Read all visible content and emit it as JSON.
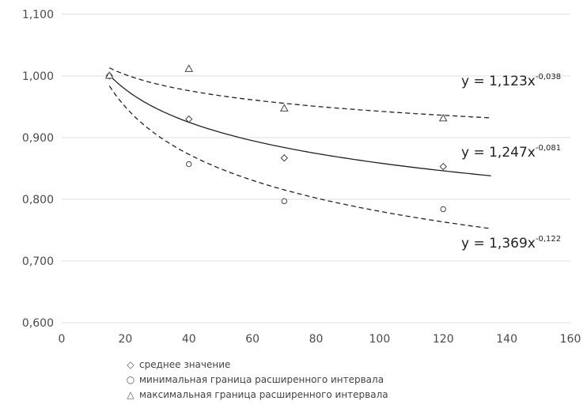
{
  "chart_data": {
    "type": "scatter",
    "xlim": [
      0,
      160
    ],
    "ylim": [
      0.6,
      1.1
    ],
    "x_ticks": [
      "0",
      "20",
      "40",
      "60",
      "80",
      "100",
      "120",
      "140",
      "160"
    ],
    "y_ticks": [
      "0,600",
      "0,700",
      "0,800",
      "0,900",
      "1,000",
      "1,100"
    ],
    "grid": "horizontal",
    "legend_position": "bottom",
    "series": [
      {
        "name": "среднее значение",
        "marker": "diamond",
        "x": [
          15,
          40,
          70,
          120
        ],
        "y": [
          1.0,
          0.93,
          0.867,
          0.853
        ],
        "fit": {
          "a": 1.247,
          "b": -0.081,
          "style": "solid",
          "x_range": [
            15,
            135
          ]
        }
      },
      {
        "name": "минимальная граница расширенного интервала",
        "marker": "circle",
        "x": [
          15,
          40,
          70,
          120
        ],
        "y": [
          1.0,
          0.857,
          0.797,
          0.784
        ],
        "fit": {
          "a": 1.369,
          "b": -0.122,
          "style": "dashed",
          "x_range": [
            15,
            135
          ]
        }
      },
      {
        "name": "максимальная граница расширенного интервала",
        "marker": "triangle",
        "x": [
          15,
          40,
          70,
          120
        ],
        "y": [
          1.0,
          1.011,
          0.947,
          0.931
        ],
        "fit": {
          "a": 1.123,
          "b": -0.038,
          "style": "dashed",
          "x_range": [
            15,
            135
          ]
        }
      }
    ],
    "annotations": [
      {
        "base": "y = 1,123x",
        "exponent": "-0,038"
      },
      {
        "base": "y = 1,247x",
        "exponent": "-0,081"
      },
      {
        "base": "y = 1,369x",
        "exponent": "-0,122"
      }
    ]
  },
  "legend": [
    {
      "symbol": "◇",
      "label": "среднее значение"
    },
    {
      "symbol": "○",
      "label": "минимальная граница расширенного интервала"
    },
    {
      "symbol": "△",
      "label": "максимальная граница расширенного интервала"
    }
  ]
}
